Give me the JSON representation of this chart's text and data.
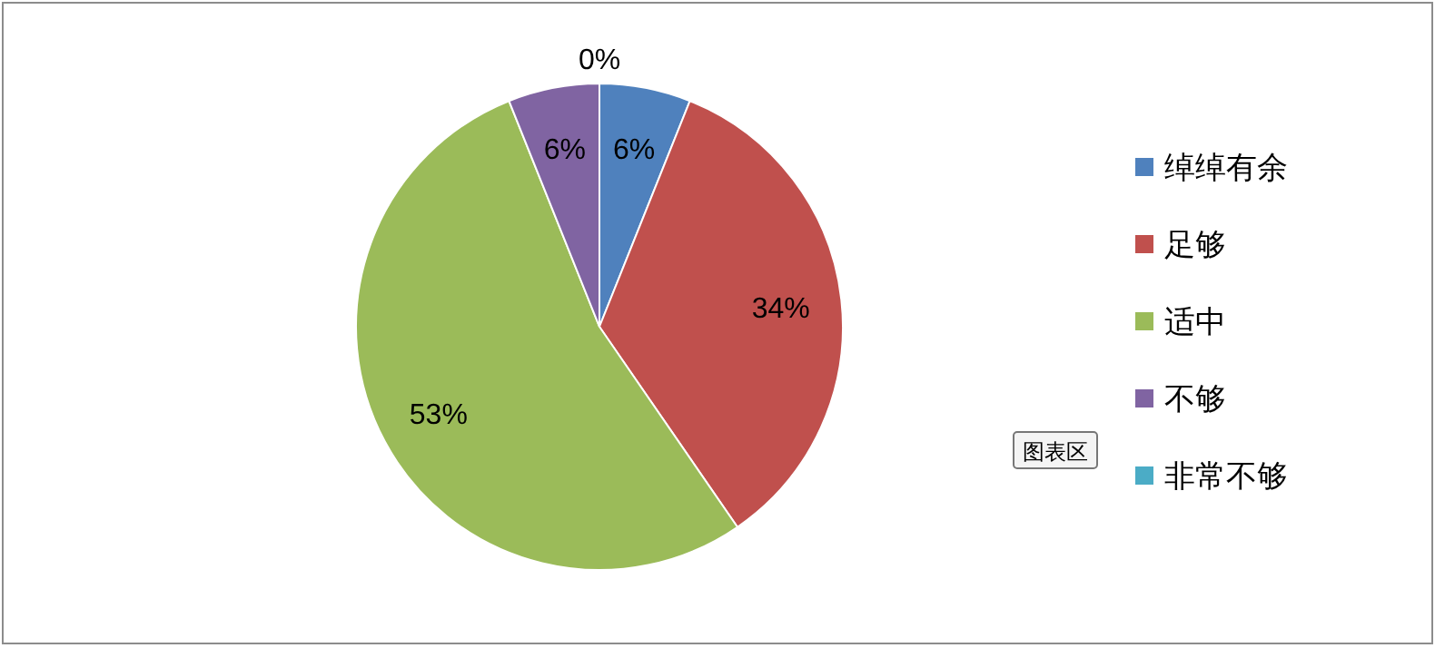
{
  "chart_data": {
    "type": "pie",
    "categories": [
      "绰绰有余",
      "足够",
      "适中",
      "不够",
      "非常不够"
    ],
    "values": [
      6,
      34,
      53,
      6,
      0
    ],
    "value_labels": [
      "6%",
      "34%",
      "53%",
      "6%",
      "0%"
    ],
    "colors": [
      "#4f81bd",
      "#c0504d",
      "#9bbb59",
      "#8064a2",
      "#4bacc6"
    ],
    "legend": "right",
    "annotations": [
      "图表区"
    ]
  }
}
